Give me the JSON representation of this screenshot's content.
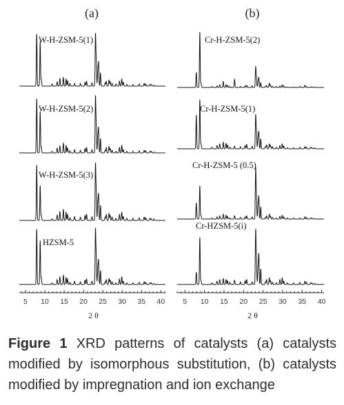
{
  "colors": {
    "trace": "#111111",
    "axis": "#222222",
    "caption": "#2b2b2b"
  },
  "caption": {
    "label": "Figure 1",
    "text": "XRD patterns of catalysts (a) catalysts modified by isomorphous substitution, (b) catalysts modified by impregnation and ion exchange"
  },
  "chart_data": [
    {
      "title": "(a)",
      "type": "line",
      "xlabel": "2θ",
      "ylabel": "",
      "xlim": [
        3.4,
        41.2
      ],
      "xticks": [
        5,
        10,
        15,
        20,
        25,
        30,
        35,
        40
      ],
      "grid": false,
      "legend": "none",
      "x": [
        7.9,
        8.8,
        9.1,
        11.9,
        13.2,
        13.9,
        14.8,
        15.5,
        15.9,
        16.5,
        17.7,
        19.2,
        20.4,
        20.8,
        22.2,
        23.1,
        23.3,
        23.7,
        23.9,
        24.4,
        25.6,
        25.9,
        26.6,
        26.9,
        27.4,
        28.4,
        29.3,
        29.9,
        30.3,
        31.2,
        32.8,
        34.4,
        35.7,
        36.1,
        37.2,
        37.5,
        38.2
      ],
      "series": [
        {
          "name": "W-H-ZSM-5(1)",
          "values": [
            94,
            80,
            12,
            4,
            8,
            14,
            16,
            13,
            10,
            5,
            5,
            5,
            7,
            9,
            6,
            92,
            45,
            28,
            42,
            24,
            6,
            9,
            11,
            8,
            5,
            4,
            9,
            13,
            7,
            3,
            3,
            4,
            5,
            4,
            3,
            3,
            2
          ]
        },
        {
          "name": "W-H-ZSM-5(2)",
          "values": [
            98,
            74,
            10,
            3,
            9,
            13,
            18,
            14,
            9,
            4,
            6,
            5,
            8,
            10,
            6,
            100,
            48,
            30,
            44,
            26,
            5,
            10,
            12,
            8,
            5,
            3,
            10,
            14,
            6,
            3,
            3,
            4,
            5,
            4,
            3,
            3,
            2
          ]
        },
        {
          "name": "W-H-ZSM-5(3)",
          "values": [
            100,
            63,
            9,
            3,
            10,
            16,
            20,
            15,
            11,
            5,
            7,
            6,
            9,
            11,
            7,
            100,
            50,
            32,
            46,
            27,
            6,
            11,
            13,
            9,
            6,
            4,
            11,
            15,
            7,
            4,
            4,
            5,
            6,
            5,
            4,
            3,
            3
          ]
        },
        {
          "name": "HZSM-5",
          "values": [
            100,
            79,
            11,
            3,
            9,
            14,
            17,
            13,
            10,
            4,
            6,
            5,
            8,
            10,
            6,
            98,
            47,
            29,
            43,
            25,
            5,
            9,
            11,
            8,
            5,
            3,
            10,
            14,
            6,
            3,
            3,
            4,
            5,
            4,
            3,
            3,
            2
          ]
        }
      ]
    },
    {
      "title": "(b)",
      "type": "line",
      "xlabel": "2θ",
      "ylabel": "",
      "xlim": [
        3.0,
        40.6
      ],
      "xticks": [
        5,
        10,
        15,
        20,
        25,
        30,
        35,
        40
      ],
      "grid": false,
      "legend": "none",
      "x": [
        7.9,
        8.8,
        9.1,
        11.9,
        13.2,
        13.9,
        14.8,
        15.5,
        15.9,
        16.5,
        17.7,
        19.2,
        20.4,
        20.8,
        22.2,
        23.1,
        23.3,
        23.7,
        23.9,
        24.4,
        25.6,
        25.9,
        26.6,
        26.9,
        27.4,
        28.4,
        29.3,
        29.9,
        30.3,
        31.2,
        32.8,
        34.4,
        35.7,
        36.1,
        37.2,
        37.5,
        38.2
      ],
      "series": [
        {
          "name": "Cr-H-ZSM-5(2)",
          "values": [
            27,
            100,
            8,
            2,
            3,
            5,
            11,
            5,
            4,
            2,
            15,
            2,
            3,
            4,
            3,
            37,
            15,
            10,
            18,
            9,
            2,
            4,
            8,
            4,
            2,
            2,
            3,
            5,
            3,
            1,
            1,
            2,
            4,
            2,
            1,
            1,
            1
          ]
        },
        {
          "name": "Cr-H-ZSM-5(1)",
          "values": [
            61,
            89,
            9,
            3,
            6,
            9,
            12,
            10,
            7,
            3,
            5,
            4,
            6,
            8,
            5,
            60,
            28,
            20,
            30,
            18,
            4,
            7,
            9,
            6,
            4,
            3,
            6,
            9,
            5,
            2,
            2,
            3,
            4,
            3,
            3,
            2,
            2
          ]
        },
        {
          "name": "Cr-H-ZSM-5 (0.5)",
          "values": [
            29,
            60,
            6,
            2,
            4,
            6,
            9,
            7,
            5,
            2,
            6,
            3,
            4,
            6,
            4,
            91,
            35,
            24,
            40,
            22,
            3,
            6,
            9,
            5,
            3,
            2,
            5,
            7,
            4,
            2,
            2,
            2,
            4,
            3,
            2,
            2,
            1
          ]
        },
        {
          "name": "Cr-HZSM-5(i)",
          "values": [
            22,
            85,
            7,
            3,
            6,
            9,
            11,
            9,
            7,
            4,
            8,
            5,
            7,
            9,
            5,
            97,
            40,
            28,
            54,
            28,
            5,
            9,
            12,
            7,
            4,
            3,
            9,
            12,
            6,
            3,
            3,
            4,
            6,
            4,
            3,
            3,
            2
          ]
        }
      ]
    }
  ]
}
